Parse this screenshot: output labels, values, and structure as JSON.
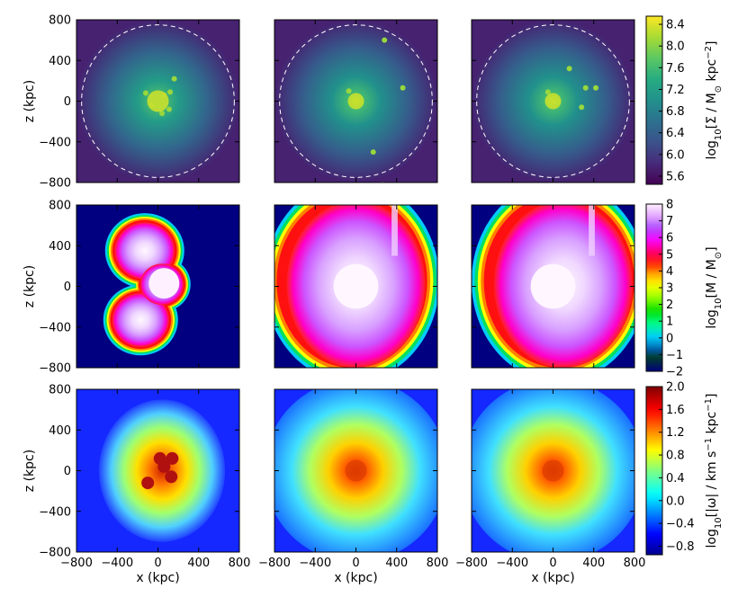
{
  "chart_data": {
    "type": "heatmap",
    "grid": "3x3 image panels",
    "x_axis": {
      "label": "x (kpc)",
      "range": [
        -800,
        800
      ],
      "ticks": [
        -800,
        -400,
        0,
        400,
        800
      ],
      "tick_labels": [
        "−800",
        "−400",
        "0",
        "400",
        "800"
      ]
    },
    "z_axis": {
      "label": "z (kpc)",
      "range": [
        -800,
        800
      ],
      "ticks": [
        -800,
        -400,
        0,
        400,
        800
      ],
      "tick_labels": [
        "−800",
        "−400",
        "0",
        "400",
        "800"
      ]
    },
    "rows": [
      {
        "quantity": "surface density",
        "colormap": "viridis",
        "colorbar_label_parts": [
          "log",
          "10",
          "[Σ / M",
          "⊙",
          " kpc",
          "−2",
          "]"
        ],
        "colorbar_range": [
          5.45,
          8.55
        ],
        "colorbar_ticks": [
          5.6,
          6.0,
          6.4,
          6.8,
          7.2,
          7.6,
          8.0,
          8.4
        ],
        "colorbar_tick_labels": [
          "5.6",
          "6.0",
          "6.4",
          "6.8",
          "7.2",
          "7.6",
          "8.0",
          "8.4"
        ],
        "overlay": "dashed white circle, radius ≈ 750 kpc"
      },
      {
        "quantity": "mass",
        "colormap": "gist_ncar",
        "colorbar_label_parts": [
          "log",
          "10",
          "[M / M",
          "⊙",
          "]"
        ],
        "colorbar_range": [
          -2,
          8
        ],
        "colorbar_ticks": [
          -2,
          -1,
          0,
          1,
          2,
          3,
          4,
          5,
          6,
          7,
          8
        ],
        "colorbar_tick_labels": [
          "−2",
          "−1",
          "0",
          "1",
          "2",
          "3",
          "4",
          "5",
          "6",
          "7",
          "8"
        ]
      },
      {
        "quantity": "vorticity",
        "colormap": "jet",
        "colorbar_label_parts": [
          "log",
          "10",
          "[|ω| / km s",
          "−1",
          " kpc",
          "−1",
          "]"
        ],
        "colorbar_range": [
          -0.95,
          2.0
        ],
        "colorbar_ticks": [
          -0.8,
          -0.4,
          0.0,
          0.4,
          0.8,
          1.2,
          1.6,
          2.0
        ],
        "colorbar_tick_labels": [
          "−0.8",
          "−0.4",
          "0.0",
          "0.4",
          "0.8",
          "1.2",
          "1.6",
          "2.0"
        ]
      }
    ]
  },
  "colors": {
    "viridis_dark": "#440154",
    "viridis_bright": "#fde725",
    "gist_ncar_background": "#000080",
    "jet_background": "#1428ff",
    "frame": "#000000",
    "circle": "#ffffff"
  }
}
